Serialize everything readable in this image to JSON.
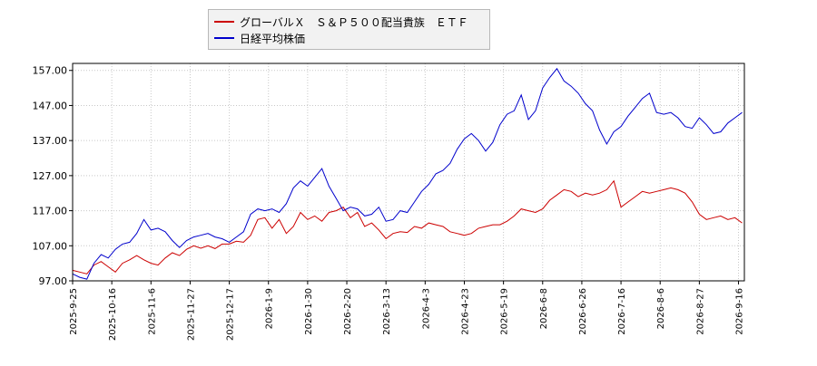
{
  "chart_data": {
    "type": "line",
    "title": "",
    "xlabel": "",
    "ylabel": "",
    "ylim": [
      97,
      159
    ],
    "y_ticks": [
      "97.00",
      "107.00",
      "117.00",
      "127.00",
      "137.00",
      "147.00",
      "157.00"
    ],
    "x_ticks": [
      "2025-9-25",
      "2025-10-16",
      "2025-11-6",
      "2025-11-27",
      "2025-12-17",
      "2026-1-9",
      "2026-1-30",
      "2026-2-20",
      "2026-3-13",
      "2026-4-3",
      "2026-4-23",
      "2026-5-19",
      "2026-6-8",
      "2026-6-26",
      "2026-7-16",
      "2026-8-6",
      "2026-8-27",
      "2026-9-16"
    ],
    "grid": true,
    "legend_position": "top",
    "series": [
      {
        "name": "グローバルＸ　Ｓ＆Ｐ５００配当貴族　ＥＴＦ",
        "color": "#cc0000",
        "points": [
          [
            0,
            100.0
          ],
          [
            0.5,
            99.5
          ],
          [
            1,
            99.0
          ],
          [
            1.5,
            101.5
          ],
          [
            2,
            102.5
          ],
          [
            2.5,
            101.0
          ],
          [
            3,
            99.5
          ],
          [
            3.5,
            102.0
          ],
          [
            4,
            103.0
          ],
          [
            4.5,
            104.2
          ],
          [
            5,
            103.0
          ],
          [
            5.5,
            102.0
          ],
          [
            6,
            101.5
          ],
          [
            6.5,
            103.5
          ],
          [
            7,
            105.0
          ],
          [
            7.5,
            104.2
          ],
          [
            8,
            106.0
          ],
          [
            8.5,
            107.0
          ],
          [
            9,
            106.3
          ],
          [
            9.5,
            107.0
          ],
          [
            10,
            106.2
          ],
          [
            10.5,
            107.5
          ],
          [
            11,
            107.5
          ],
          [
            11.5,
            108.3
          ],
          [
            12,
            108.0
          ],
          [
            12.5,
            110.0
          ],
          [
            13,
            114.5
          ],
          [
            13.5,
            115.0
          ],
          [
            14,
            112.0
          ],
          [
            14.5,
            114.5
          ],
          [
            15,
            110.5
          ],
          [
            15.5,
            112.5
          ],
          [
            16,
            116.5
          ],
          [
            16.5,
            114.5
          ],
          [
            17,
            115.5
          ],
          [
            17.5,
            114.0
          ],
          [
            18,
            116.5
          ],
          [
            18.5,
            117.0
          ],
          [
            19,
            118.0
          ],
          [
            19.5,
            115.0
          ],
          [
            20,
            116.5
          ],
          [
            20.5,
            112.5
          ],
          [
            21,
            113.5
          ],
          [
            21.5,
            111.5
          ],
          [
            22,
            109.0
          ],
          [
            22.5,
            110.5
          ],
          [
            23,
            111.0
          ],
          [
            23.5,
            110.8
          ],
          [
            24,
            112.5
          ],
          [
            24.5,
            112.0
          ],
          [
            25,
            113.5
          ],
          [
            25.5,
            113.0
          ],
          [
            26,
            112.5
          ],
          [
            26.5,
            111.0
          ],
          [
            27,
            110.5
          ],
          [
            27.5,
            110.0
          ],
          [
            28,
            110.5
          ],
          [
            28.5,
            112.0
          ],
          [
            29,
            112.5
          ],
          [
            29.5,
            113.0
          ],
          [
            30,
            113.0
          ],
          [
            30.5,
            114.0
          ],
          [
            31,
            115.5
          ],
          [
            31.5,
            117.5
          ],
          [
            32,
            117.0
          ],
          [
            32.5,
            116.5
          ],
          [
            33,
            117.5
          ],
          [
            33.5,
            120.0
          ],
          [
            34,
            121.5
          ],
          [
            34.5,
            123.0
          ],
          [
            35,
            122.5
          ],
          [
            35.5,
            121.0
          ],
          [
            36,
            122.0
          ],
          [
            36.5,
            121.5
          ],
          [
            37,
            122.0
          ],
          [
            37.5,
            123.0
          ],
          [
            38,
            125.5
          ],
          [
            38.5,
            118.0
          ],
          [
            39,
            119.5
          ],
          [
            39.5,
            121.0
          ],
          [
            40,
            122.5
          ],
          [
            40.5,
            122.0
          ],
          [
            41,
            122.5
          ],
          [
            41.5,
            123.0
          ],
          [
            42,
            123.5
          ],
          [
            42.5,
            123.0
          ],
          [
            43,
            122.0
          ],
          [
            43.5,
            119.5
          ],
          [
            44,
            116.0
          ],
          [
            44.5,
            114.5
          ],
          [
            45,
            115.0
          ],
          [
            45.5,
            115.5
          ],
          [
            46,
            114.5
          ],
          [
            46.5,
            115.0
          ],
          [
            47,
            113.5
          ]
        ]
      },
      {
        "name": "日経平均株価",
        "color": "#0000cc",
        "points": [
          [
            0,
            99.0
          ],
          [
            0.5,
            98.0
          ],
          [
            1,
            97.5
          ],
          [
            1.5,
            102.0
          ],
          [
            2,
            104.5
          ],
          [
            2.5,
            103.5
          ],
          [
            3,
            106.0
          ],
          [
            3.5,
            107.5
          ],
          [
            4,
            108.0
          ],
          [
            4.5,
            110.5
          ],
          [
            5,
            114.5
          ],
          [
            5.5,
            111.5
          ],
          [
            6,
            112.0
          ],
          [
            6.5,
            111.0
          ],
          [
            7,
            108.5
          ],
          [
            7.5,
            106.5
          ],
          [
            8,
            108.5
          ],
          [
            8.5,
            109.5
          ],
          [
            9,
            110.0
          ],
          [
            9.5,
            110.5
          ],
          [
            10,
            109.5
          ],
          [
            10.5,
            109.0
          ],
          [
            11,
            108.0
          ],
          [
            11.5,
            109.5
          ],
          [
            12,
            111.0
          ],
          [
            12.5,
            116.0
          ],
          [
            13,
            117.5
          ],
          [
            13.5,
            117.0
          ],
          [
            14,
            117.5
          ],
          [
            14.5,
            116.5
          ],
          [
            15,
            119.0
          ],
          [
            15.5,
            123.5
          ],
          [
            16,
            125.5
          ],
          [
            16.5,
            124.0
          ],
          [
            17,
            126.5
          ],
          [
            17.5,
            129.0
          ],
          [
            18,
            124.0
          ],
          [
            18.5,
            120.5
          ],
          [
            19,
            117.0
          ],
          [
            19.5,
            118.0
          ],
          [
            20,
            117.5
          ],
          [
            20.5,
            115.5
          ],
          [
            21,
            116.0
          ],
          [
            21.5,
            118.0
          ],
          [
            22,
            114.0
          ],
          [
            22.5,
            114.5
          ],
          [
            23,
            117.0
          ],
          [
            23.5,
            116.5
          ],
          [
            24,
            119.5
          ],
          [
            24.5,
            122.5
          ],
          [
            25,
            124.5
          ],
          [
            25.5,
            127.5
          ],
          [
            26,
            128.5
          ],
          [
            26.5,
            130.5
          ],
          [
            27,
            134.5
          ],
          [
            27.5,
            137.5
          ],
          [
            28,
            139.0
          ],
          [
            28.5,
            137.0
          ],
          [
            29,
            134.0
          ],
          [
            29.5,
            136.5
          ],
          [
            30,
            141.5
          ],
          [
            30.5,
            144.5
          ],
          [
            31,
            145.5
          ],
          [
            31.5,
            150.0
          ],
          [
            32,
            143.0
          ],
          [
            32.5,
            145.5
          ],
          [
            33,
            152.0
          ],
          [
            33.5,
            155.0
          ],
          [
            34,
            157.5
          ],
          [
            34.5,
            154.0
          ],
          [
            35,
            152.5
          ],
          [
            35.5,
            150.5
          ],
          [
            36,
            147.5
          ],
          [
            36.5,
            145.5
          ],
          [
            37,
            140.0
          ],
          [
            37.5,
            136.0
          ],
          [
            38,
            139.5
          ],
          [
            38.5,
            141.0
          ],
          [
            39,
            144.0
          ],
          [
            39.5,
            146.5
          ],
          [
            40,
            149.0
          ],
          [
            40.5,
            150.5
          ],
          [
            41,
            145.0
          ],
          [
            41.5,
            144.5
          ],
          [
            42,
            145.0
          ],
          [
            42.5,
            143.5
          ],
          [
            43,
            141.0
          ],
          [
            43.5,
            140.5
          ],
          [
            44,
            143.5
          ],
          [
            44.5,
            141.5
          ],
          [
            45,
            139.0
          ],
          [
            45.5,
            139.5
          ],
          [
            46,
            142.0
          ],
          [
            46.5,
            143.5
          ],
          [
            47,
            145.0
          ]
        ]
      }
    ]
  }
}
